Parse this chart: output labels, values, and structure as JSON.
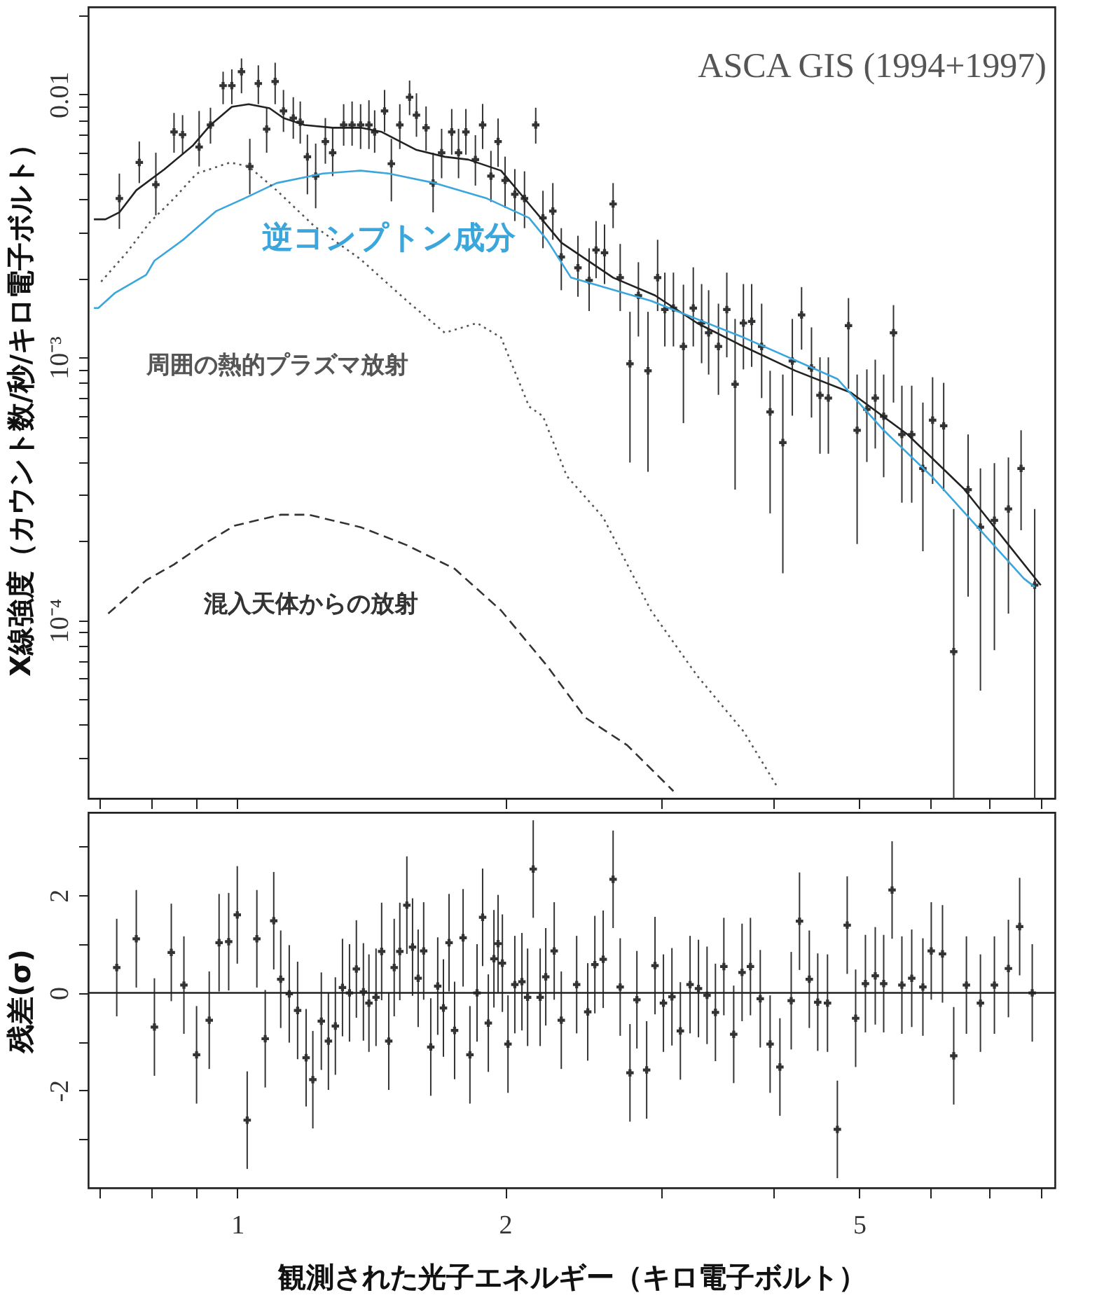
{
  "chart_data": [
    {
      "type": "scatter",
      "ylabel": "X線強度（カウント数/秒/キロ電子ボルト）",
      "log": "xy",
      "tick_labels": "y",
      "grid": false,
      "annotations": [
        "ASCA GIS (1994+1997)"
      ],
      "xlim": [
        0.68,
        8.3
      ],
      "xticks": [
        {
          "value": 0.7,
          "label": null
        },
        {
          "value": 0.8,
          "label": null
        },
        {
          "value": 0.9,
          "label": null
        },
        1,
        2,
        {
          "value": 3,
          "label": null
        },
        {
          "value": 4,
          "label": null
        },
        5,
        {
          "value": 6,
          "label": null
        },
        {
          "value": 7,
          "label": null
        },
        {
          "value": 8,
          "label": null
        }
      ],
      "ylim": [
        2.1e-05,
        0.0215
      ],
      "yticks": [
        {
          "value": 3e-05,
          "label": null
        },
        {
          "value": 4e-05,
          "label": null
        },
        {
          "value": 5e-05,
          "label": null
        },
        {
          "value": 6e-05,
          "label": null
        },
        {
          "value": 7e-05,
          "label": null
        },
        {
          "value": 8e-05,
          "label": null
        },
        {
          "value": 9e-05,
          "label": null
        },
        {
          "value": 0.0001,
          "label": "10⁻⁴"
        },
        {
          "value": 0.0002,
          "label": null
        },
        {
          "value": 0.0003,
          "label": null
        },
        {
          "value": 0.0004,
          "label": null
        },
        {
          "value": 0.0005,
          "label": null
        },
        {
          "value": 0.0006,
          "label": null
        },
        {
          "value": 0.0007,
          "label": null
        },
        {
          "value": 0.0008,
          "label": null
        },
        {
          "value": 0.0009,
          "label": null
        },
        {
          "value": 0.001,
          "label": "10⁻³"
        },
        {
          "value": 0.002,
          "label": null
        },
        {
          "value": 0.003,
          "label": null
        },
        {
          "value": 0.004,
          "label": null
        },
        {
          "value": 0.005,
          "label": null
        },
        {
          "value": 0.006,
          "label": null
        },
        {
          "value": 0.007,
          "label": null
        },
        {
          "value": 0.008,
          "label": null
        },
        {
          "value": 0.009,
          "label": null
        },
        0.01,
        {
          "value": 0.02,
          "label": null
        }
      ],
      "series": [
        {
          "color": "#333333",
          "marker": "cross",
          "x": [
            0.737,
            0.776,
            0.81,
            0.849,
            0.868,
            0.906,
            0.933,
            0.964,
            0.986,
            1.011,
            1.033,
            1.056,
            1.079,
            1.103,
            1.127,
            1.156,
            1.177,
            1.199,
            1.225,
            1.256,
            1.28,
            1.317,
            1.346,
            1.376,
            1.406,
            1.427,
            1.464,
            1.49,
            1.523,
            1.562,
            1.59,
            1.63,
            1.66,
            1.697,
            1.742,
            1.773,
            1.807,
            1.852,
            1.887,
            1.928,
            1.964,
            2.0,
            2.051,
            2.103,
            2.165,
            2.206,
            2.263,
            2.313,
            2.415,
            2.486,
            2.531,
            2.587,
            2.645,
            2.694,
            2.763,
            2.824,
            2.895,
            2.968,
            3.024,
            3.092,
            3.173,
            3.255,
            3.326,
            3.387,
            3.474,
            3.55,
            3.627,
            3.706,
            3.786,
            3.885,
            3.971,
            4.104,
            4.206,
            4.308,
            4.42,
            4.518,
            4.617,
            4.864,
            4.974,
            5.101,
            5.213,
            5.328,
            5.465,
            5.585,
            5.729,
            5.897,
            6.047,
            6.223,
            6.387,
            6.629,
            6.844,
            7.096,
            7.358,
            7.603,
            7.876
          ],
          "values": [
            0.00402,
            0.00551,
            0.00454,
            0.0072,
            0.00703,
            0.00631,
            0.00765,
            0.0108,
            0.0108,
            0.0122,
            0.00532,
            0.011,
            0.00738,
            0.0112,
            0.00865,
            0.00813,
            0.00784,
            0.00579,
            0.00489,
            0.00662,
            0.006,
            0.00765,
            0.00765,
            0.00765,
            0.00765,
            0.0072,
            0.00865,
            0.00545,
            0.00765,
            0.00976,
            0.00834,
            0.00747,
            0.0046,
            0.006,
            0.0072,
            0.006,
            0.0072,
            0.00565,
            0.00765,
            0.00489,
            0.00662,
            0.00471,
            0.00417,
            0.00402,
            0.00765,
            0.00339,
            0.0036,
            0.00241,
            0.00219,
            0.00196,
            0.00256,
            0.0025,
            0.00383,
            0.00201,
            0.000945,
            0.00172,
            0.000889,
            0.00201,
            0.00152,
            0.00154,
            0.0011,
            0.00154,
            0.00135,
            0.00124,
            0.0011,
            0.00152,
            0.00079,
            0.00135,
            0.00137,
            0.0011,
            0.00062,
            0.000474,
            0.000968,
            0.00145,
            0.000911,
            0.000717,
            0.0007,
            0.00132,
            0.000528,
            0.000634,
            0.0007,
            0.000597,
            0.00124,
            0.000509,
            0.000509,
            0.000378,
            0.000577,
            0.000549,
            7.6e-05,
            0.000314,
            0.000226,
            0.00024,
            0.000265,
            0.000378,
            0.000136
          ],
          "errors": [
            [
              0.00308,
              0.005
            ],
            [
              0.0046,
              0.00662
            ],
            [
              0.00347,
              0.006
            ],
            [
              0.006,
              0.0085
            ],
            [
              0.0059,
              0.00834
            ],
            [
              0.00532,
              0.00865
            ],
            [
              0.0065,
              0.0089
            ],
            [
              0.00918,
              0.0122
            ],
            [
              0.00918,
              0.01245
            ],
            [
              0.0101,
              0.0137
            ],
            [
              0.00417,
              0.00678
            ],
            [
              0.00918,
              0.0129
            ],
            [
              0.006,
              0.0089
            ],
            [
              0.00918,
              0.0132
            ],
            [
              0.0072,
              0.0104
            ],
            [
              0.00678,
              0.00976
            ],
            [
              0.0065,
              0.0094
            ],
            [
              0.00417,
              0.00703
            ],
            [
              0.00369,
              0.0065
            ],
            [
              0.00545,
              0.00813
            ],
            [
              0.00489,
              0.00747
            ],
            [
              0.00638,
              0.00918
            ],
            [
              0.00638,
              0.0094
            ],
            [
              0.0062,
              0.00918
            ],
            [
              0.0062,
              0.0095
            ],
            [
              0.006,
              0.0087
            ],
            [
              0.0072,
              0.0104
            ],
            [
              0.00392,
              0.00678
            ],
            [
              0.0062,
              0.00918
            ],
            [
              0.00834,
              0.01129
            ],
            [
              0.0069,
              0.0101
            ],
            [
              0.0061,
              0.009
            ],
            [
              0.00356,
              0.006
            ],
            [
              0.0048,
              0.0074
            ],
            [
              0.0059,
              0.0088
            ],
            [
              0.0048,
              0.0074
            ],
            [
              0.0059,
              0.0088
            ],
            [
              0.0045,
              0.007
            ],
            [
              0.0062,
              0.0092
            ],
            [
              0.0039,
              0.0061
            ],
            [
              0.0053,
              0.0081
            ],
            [
              0.0037,
              0.0058
            ],
            [
              0.0033,
              0.0052
            ],
            [
              0.0031,
              0.0051
            ],
            [
              0.0065,
              0.0089
            ],
            [
              0.0026,
              0.0043
            ],
            [
              0.0028,
              0.0046
            ],
            [
              0.0018,
              0.0031
            ],
            [
              0.0017,
              0.0029
            ],
            [
              0.0015,
              0.0026
            ],
            [
              0.002,
              0.0033
            ],
            [
              0.0019,
              0.0032
            ],
            [
              0.0031,
              0.0046
            ],
            [
              0.0015,
              0.0027
            ],
            [
              0.000398,
              0.00149
            ],
            [
              0.0012,
              0.0023
            ],
            [
              0.000367,
              0.00149
            ],
            [
              0.0015,
              0.0028
            ],
            [
              0.0011,
              0.0021
            ],
            [
              0.0011,
              0.0021
            ],
            [
              0.000562,
              0.00189
            ],
            [
              0.0011,
              0.0022
            ],
            [
              0.00095,
              0.0019
            ],
            [
              0.00086,
              0.0018
            ],
            [
              0.00072,
              0.0016
            ],
            [
              0.001,
              0.0021
            ],
            [
              0.000314,
              0.0014
            ],
            [
              0.0009,
              0.0019
            ],
            [
              0.00092,
              0.0019
            ],
            [
              0.0007,
              0.0016
            ],
            [
              0.000255,
              0.000889
            ],
            [
              0.000151,
              0.00086
            ],
            [
              0.0006,
              0.0014
            ],
            [
              0.00107,
              0.00185
            ],
            [
              0.00059,
              0.0013
            ],
            [
              0.00043,
              0.001
            ],
            [
              0.00043,
              0.001
            ],
            [
              0.00076,
              0.00168
            ],
            [
              0.000195,
              0.00086
            ],
            [
              0.0004,
              0.0009
            ],
            [
              0.00045,
              0.00098
            ],
            [
              0.00035,
              0.00086
            ],
            [
              0.000673,
              0.00158
            ],
            [
              0.00028,
              0.00078
            ],
            [
              0.00028,
              0.00078
            ],
            [
              0.000183,
              0.000673
            ],
            [
              0.00033,
              0.00084
            ],
            [
              0.00031,
              0.0008
            ],
            [
              2.1e-05,
              0.000265
            ],
            [
              0.000123,
              0.000509
            ],
            [
              5.4e-05,
              0.000378
            ],
            [
              7.7e-05,
              0.000396
            ],
            [
              0.000106,
              0.000416
            ],
            [
              0.00022,
              0.000528
            ],
            [
              2.1e-05,
              0.000265
            ]
          ]
        },
        {
          "type": "line",
          "color": "#222222",
          "line_style": "solid",
          "x": [
            0.69,
            0.711,
            0.737,
            0.77,
            0.828,
            0.891,
            0.933,
            0.986,
            1.03,
            1.087,
            1.127,
            1.19,
            1.28,
            1.376,
            1.453,
            1.59,
            1.711,
            1.819,
            1.979,
            2.128,
            2.313,
            2.645,
            2.948,
            3.288,
            3.666,
            4.24,
            4.898,
            5.667,
            6.553,
            7.305,
            8.0
          ],
          "values": [
            0.00335,
            0.00335,
            0.00356,
            0.00432,
            0.00519,
            0.00638,
            0.00765,
            0.00897,
            0.00918,
            0.00886,
            0.00813,
            0.00765,
            0.00747,
            0.00747,
            0.0072,
            0.00615,
            0.00579,
            0.00565,
            0.00513,
            0.00383,
            0.00273,
            0.00201,
            0.00172,
            0.00135,
            0.00112,
            0.000889,
            0.000733,
            0.000509,
            0.000317,
            0.0002,
            0.000136
          ]
        },
        {
          "type": "line",
          "name": "逆コンプトン成分",
          "color": "#3aa6dc",
          "line_style": "solid",
          "x": [
            0.69,
            0.698,
            0.729,
            0.79,
            0.807,
            0.868,
            0.947,
            1.018,
            1.107,
            1.248,
            1.376,
            1.48,
            1.668,
            1.908,
            2.128,
            2.23,
            2.372,
            2.917,
            3.707,
            4.726,
            5.328,
            6.026,
            6.794,
            7.66,
            7.876
          ],
          "values": [
            0.00154,
            0.00154,
            0.00176,
            0.00206,
            0.00233,
            0.00279,
            0.0036,
            0.00402,
            0.0046,
            0.005,
            0.00513,
            0.005,
            0.0046,
            0.00402,
            0.00339,
            0.00279,
            0.00201,
            0.00164,
            0.00119,
            0.000828,
            0.000528,
            0.000354,
            0.000226,
            0.000144,
            0.000134
          ]
        },
        {
          "type": "line",
          "name": "周囲の熱的プラズマ放射",
          "color": "#555555",
          "line_style": "dotted",
          "x": [
            0.703,
            0.751,
            0.798,
            0.849,
            0.9,
            0.982,
            1.03,
            1.107,
            1.221,
            1.376,
            1.551,
            1.711,
            1.86,
            1.979,
            2.128,
            2.206,
            2.346,
            2.578,
            2.917,
            3.288,
            3.707,
            4.044
          ],
          "values": [
            0.00194,
            0.0025,
            0.00327,
            0.00402,
            0.005,
            0.00551,
            0.00532,
            0.00432,
            0.00315,
            0.00236,
            0.00164,
            0.00124,
            0.00135,
            0.00119,
            0.00065,
            0.000597,
            0.000354,
            0.000246,
            0.000109,
            6.15e-05,
            3.78e-05,
            2.33e-05
          ]
        },
        {
          "type": "line",
          "name": "混入天体からの放射",
          "color": "#333333",
          "line_style": "dashed",
          "x": [
            0.716,
            0.79,
            0.849,
            0.913,
            0.993,
            1.119,
            1.203,
            1.376,
            1.551,
            1.755,
            1.979,
            2.23,
            2.46,
            2.743,
            3.092
          ],
          "values": [
            0.000106,
            0.000142,
            0.000163,
            0.000193,
            0.000229,
            0.000252,
            0.000252,
            0.000226,
            0.000193,
            0.000157,
            0.000109,
            6.7e-05,
            4.27e-05,
            3.35e-05,
            2.24e-05
          ]
        }
      ]
    },
    {
      "type": "scatter",
      "xlabel": "観測された光子エネルギー（キロ電子ボルト）",
      "ylabel": "残差(σ)",
      "log": "x",
      "grid": false,
      "marker": "cross",
      "xlim": [
        0.68,
        8.3
      ],
      "xticks": [
        {
          "value": 0.7,
          "label": null
        },
        {
          "value": 0.8,
          "label": null
        },
        {
          "value": 0.9,
          "label": null
        },
        1,
        2,
        {
          "value": 3,
          "label": null
        },
        {
          "value": 4,
          "label": null
        },
        5,
        {
          "value": 6,
          "label": null
        },
        {
          "value": 7,
          "label": null
        },
        {
          "value": 8,
          "label": null
        }
      ],
      "ylim": [
        -4,
        3.7
      ],
      "yticks": [
        {
          "value": -3,
          "label": null
        },
        -2,
        {
          "value": -1,
          "label": null
        },
        0,
        {
          "value": 1,
          "label": null
        },
        2,
        {
          "value": 3,
          "label": null
        }
      ],
      "ref_lines": [
        {
          "axis": "y",
          "value": 0,
          "color": "#222222"
        }
      ],
      "series": [
        {
          "color": "#333333",
          "x": [
            0.732,
            0.77,
            0.807,
            0.843,
            0.871,
            0.9,
            0.93,
            0.954,
            0.978,
            1.0,
            1.026,
            1.052,
            1.075,
            1.099,
            1.119,
            1.144,
            1.169,
            1.195,
            1.216,
            1.243,
            1.266,
            1.289,
            1.313,
            1.337,
            1.361,
            1.386,
            1.406,
            1.432,
            1.453,
            1.48,
            1.501,
            1.523,
            1.551,
            1.574,
            1.597,
            1.62,
            1.65,
            1.68,
            1.705,
            1.73,
            1.755,
            1.794,
            1.826,
            1.86,
            1.887,
            1.915,
            1.943,
            1.964,
            1.986,
            2.015,
            2.051,
            2.089,
            2.12,
            2.151,
            2.19,
            2.222,
            2.271,
            2.313,
            2.407,
            2.477,
            2.523,
            2.578,
            2.645,
            2.694,
            2.763,
            2.813,
            2.885,
            2.948,
            3.013,
            3.08,
            3.148,
            3.228,
            3.299,
            3.373,
            3.447,
            3.523,
            3.614,
            3.693,
            3.774,
            3.871,
            3.971,
            4.073,
            4.194,
            4.285,
            4.395,
            4.492,
            4.607,
            4.726,
            4.848,
            4.955,
            5.082,
            5.213,
            5.328,
            5.445,
            5.585,
            5.729,
            5.897,
            6.026,
            6.204,
            6.387,
            6.6,
            6.844,
            7.096,
            7.358,
            7.575,
            7.826
          ],
          "values": [
            0.52,
            1.11,
            -0.7,
            0.83,
            0.16,
            -1.27,
            -0.56,
            1.03,
            1.05,
            1.6,
            -2.61,
            1.11,
            -0.94,
            1.48,
            0.28,
            -0.02,
            -0.36,
            -1.33,
            -1.78,
            -0.58,
            -0.99,
            -0.68,
            0.11,
            0,
            0.49,
            0.02,
            -0.21,
            -0.09,
            0.85,
            -0.99,
            0.52,
            0.85,
            1.8,
            0.94,
            0.3,
            0.86,
            -1.11,
            0.14,
            -0.31,
            1.03,
            -0.77,
            1.13,
            -1.27,
            0,
            1.55,
            -0.62,
            0.7,
            1.01,
            0.61,
            -1.05,
            0.17,
            0.23,
            -0.09,
            2.54,
            -0.09,
            0.33,
            0.86,
            -0.56,
            0.17,
            -0.39,
            0.58,
            0.69,
            2.33,
            0.12,
            -1.64,
            -0.14,
            -1.58,
            0.56,
            -0.21,
            -0.08,
            -0.78,
            0.17,
            0.09,
            -0.05,
            -0.4,
            0.54,
            -0.85,
            0.42,
            0.54,
            -0.12,
            -1.05,
            -1.52,
            -0.16,
            1.47,
            0.28,
            -0.19,
            -0.21,
            -2.8,
            1.39,
            -0.52,
            0.19,
            0.35,
            0.19,
            2.11,
            0.16,
            0.3,
            0.12,
            0.86,
            0.8,
            -1.29,
            0.16,
            -0.21,
            0.16,
            0.5,
            1.36,
            0
          ],
          "errors": [
            1,
            1,
            1,
            1,
            1,
            1,
            1,
            1,
            1,
            1,
            1,
            1,
            1,
            1,
            1,
            1,
            1,
            1,
            1,
            1,
            1,
            1,
            1,
            1,
            1,
            1,
            1,
            1,
            1,
            1,
            1,
            1,
            1,
            1,
            1,
            1,
            1,
            1,
            1,
            1,
            1,
            1,
            1,
            1,
            1,
            1,
            1,
            1,
            1,
            1,
            1,
            1,
            1,
            1,
            1,
            1,
            1,
            1,
            1,
            1,
            1,
            1,
            1,
            1,
            1,
            1,
            1,
            1,
            1,
            1,
            1,
            1,
            1,
            1,
            1,
            1,
            1,
            1,
            1,
            1,
            1,
            1,
            1,
            1,
            1,
            1,
            1,
            1,
            1,
            1,
            1,
            1,
            1,
            1,
            1,
            1,
            1,
            1,
            1,
            1,
            1,
            1,
            1,
            1,
            1,
            1
          ]
        }
      ]
    }
  ]
}
